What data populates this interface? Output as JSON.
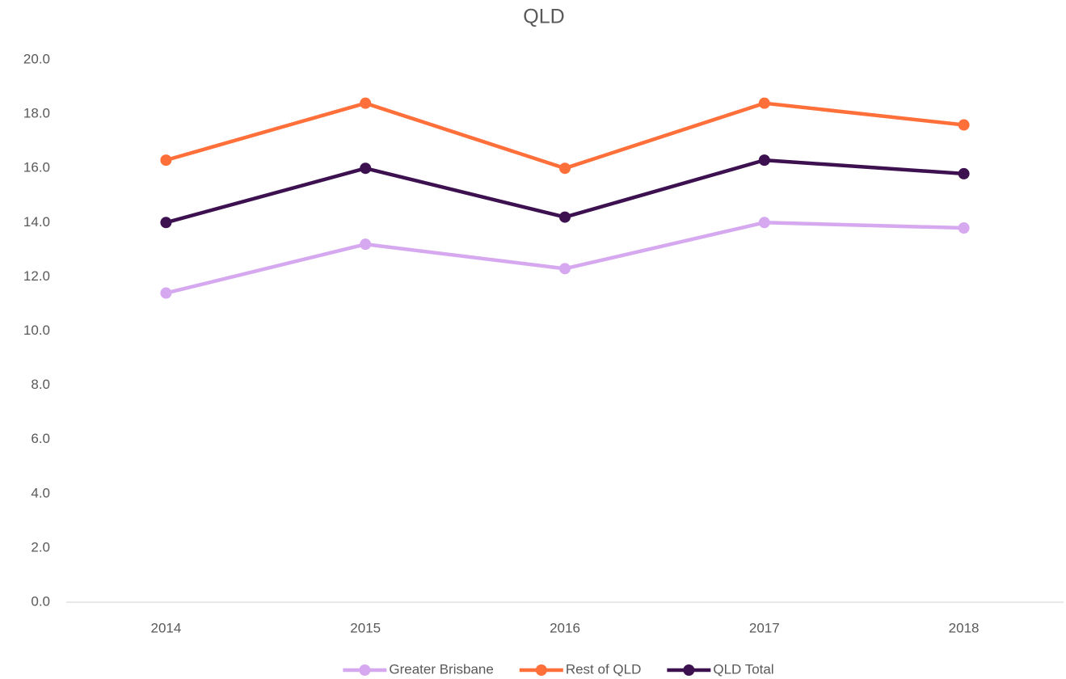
{
  "chart_data": {
    "type": "line",
    "title": "QLD",
    "categories": [
      "2014",
      "2015",
      "2016",
      "2017",
      "2018"
    ],
    "series": [
      {
        "name": "Greater Brisbane",
        "color": "#d5a8f0",
        "values": [
          11.4,
          13.2,
          12.3,
          14.0,
          13.8
        ]
      },
      {
        "name": "Rest of QLD",
        "color": "#ff6f3a",
        "values": [
          16.3,
          18.4,
          16.0,
          18.4,
          17.6
        ]
      },
      {
        "name": "QLD Total",
        "color": "#3d1050",
        "values": [
          14.0,
          16.0,
          14.2,
          16.3,
          15.8
        ]
      }
    ],
    "ylim": [
      0,
      20
    ],
    "yticks": [
      {
        "value": 0,
        "label": "0.0"
      },
      {
        "value": 2,
        "label": "2.0"
      },
      {
        "value": 4,
        "label": "4.0"
      },
      {
        "value": 6,
        "label": "6.0"
      },
      {
        "value": 8,
        "label": "8.0"
      },
      {
        "value": 10,
        "label": "10.0"
      },
      {
        "value": 12,
        "label": "12.0"
      },
      {
        "value": 14,
        "label": "14.0"
      },
      {
        "value": 16,
        "label": "16.0"
      },
      {
        "value": 18,
        "label": "18.0"
      },
      {
        "value": 20,
        "label": "20.0"
      }
    ],
    "grid": false,
    "legend": "bottom"
  }
}
